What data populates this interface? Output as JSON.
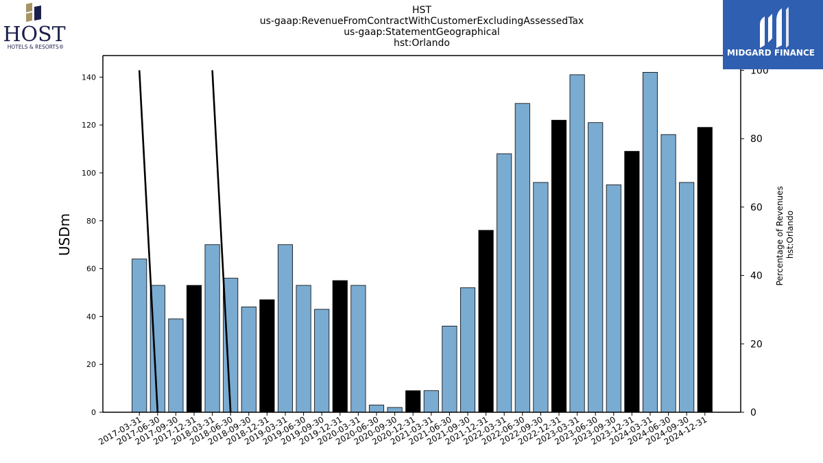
{
  "titles": {
    "line1": "HST",
    "line2": "us-gaap:RevenueFromContractWithCustomerExcludingAssessedTax",
    "line3": "us-gaap:StatementGeographical",
    "line4": "hst:Orlando"
  },
  "logos": {
    "host_text": "HOST",
    "host_sub": "HOTELS & RESORTS®",
    "midgard_text": "MIDGARD FINANCE"
  },
  "colors": {
    "bar_default": "#7aabd1",
    "bar_q4": "#000000",
    "line": "#000000",
    "host_navy": "#1b1f4b",
    "host_gold": "#a69463",
    "midgard_blue": "#2f5fb0"
  },
  "chart_data": {
    "type": "bar",
    "categories": [
      "2017-03-31",
      "2017-06-30",
      "2017-09-30",
      "2017-12-31",
      "2018-03-31",
      "2018-06-30",
      "2018-09-30",
      "2018-12-31",
      "2019-03-31",
      "2019-06-30",
      "2019-09-30",
      "2019-12-31",
      "2020-03-31",
      "2020-06-30",
      "2020-09-30",
      "2020-12-31",
      "2021-03-31",
      "2021-06-30",
      "2021-09-30",
      "2021-12-31",
      "2022-03-31",
      "2022-06-30",
      "2022-09-30",
      "2022-12-31",
      "2023-03-31",
      "2023-06-30",
      "2023-09-30",
      "2023-12-31",
      "2024-03-31",
      "2024-06-30",
      "2024-09-30",
      "2024-12-31"
    ],
    "series": [
      {
        "axis": "left",
        "type": "bar",
        "values": [
          64,
          53,
          39,
          53,
          70,
          56,
          44,
          47,
          70,
          53,
          43,
          55,
          53,
          3,
          2,
          9,
          9,
          36,
          52,
          76,
          108,
          129,
          96,
          122,
          141,
          121,
          95,
          109,
          142,
          116,
          96,
          119
        ]
      },
      {
        "axis": "right",
        "type": "line",
        "values": [
          100,
          0,
          null,
          null,
          100,
          0,
          null,
          null,
          null,
          null,
          null,
          null,
          null,
          null,
          null,
          null,
          null,
          null,
          null,
          null,
          null,
          null,
          null,
          null,
          null,
          null,
          null,
          null,
          null,
          null,
          null,
          null
        ]
      }
    ],
    "ylabel": "USDm",
    "ylabel_right": [
      "Percentage of Revenues",
      "hst:Orlando"
    ],
    "ylim": [
      0,
      149
    ],
    "ylim_right": [
      0,
      104.3
    ],
    "yticks": [
      0,
      20,
      40,
      60,
      80,
      100,
      120,
      140
    ],
    "yticks_right": [
      0,
      20,
      40,
      60,
      80,
      100
    ],
    "q4_highlight": true,
    "grid": false
  }
}
